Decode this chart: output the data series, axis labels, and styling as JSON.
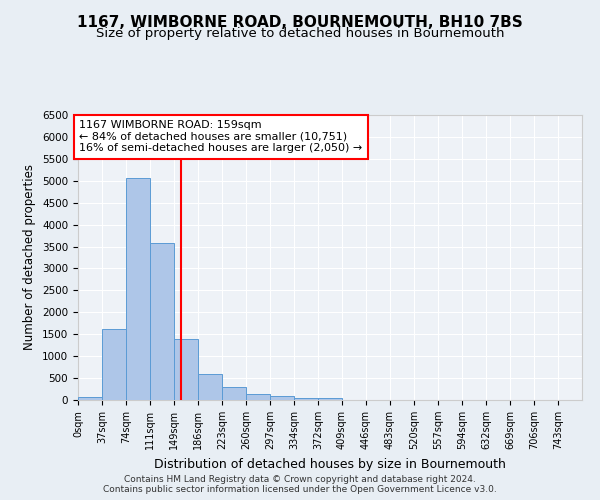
{
  "title": "1167, WIMBORNE ROAD, BOURNEMOUTH, BH10 7BS",
  "subtitle": "Size of property relative to detached houses in Bournemouth",
  "xlabel": "Distribution of detached houses by size in Bournemouth",
  "ylabel": "Number of detached properties",
  "bin_labels": [
    "0sqm",
    "37sqm",
    "74sqm",
    "111sqm",
    "149sqm",
    "186sqm",
    "223sqm",
    "260sqm",
    "297sqm",
    "334sqm",
    "372sqm",
    "409sqm",
    "446sqm",
    "483sqm",
    "520sqm",
    "557sqm",
    "594sqm",
    "632sqm",
    "669sqm",
    "706sqm",
    "743sqm"
  ],
  "bar_heights": [
    75,
    1620,
    5060,
    3580,
    1390,
    600,
    290,
    145,
    80,
    50,
    55,
    0,
    0,
    0,
    0,
    0,
    0,
    0,
    0,
    0,
    0
  ],
  "bar_color": "#aec6e8",
  "bar_edge_color": "#5b9bd5",
  "red_line_x": 159,
  "annotation_text": "1167 WIMBORNE ROAD: 159sqm\n← 84% of detached houses are smaller (10,751)\n16% of semi-detached houses are larger (2,050) →",
  "ylim": [
    0,
    6500
  ],
  "yticks": [
    0,
    500,
    1000,
    1500,
    2000,
    2500,
    3000,
    3500,
    4000,
    4500,
    5000,
    5500,
    6000,
    6500
  ],
  "bg_color": "#e8eef4",
  "plot_bg_color": "#eef2f7",
  "grid_color": "white",
  "title_fontsize": 11,
  "subtitle_fontsize": 9.5,
  "footer_line1": "Contains HM Land Registry data © Crown copyright and database right 2024.",
  "footer_line2": "Contains public sector information licensed under the Open Government Licence v3.0."
}
